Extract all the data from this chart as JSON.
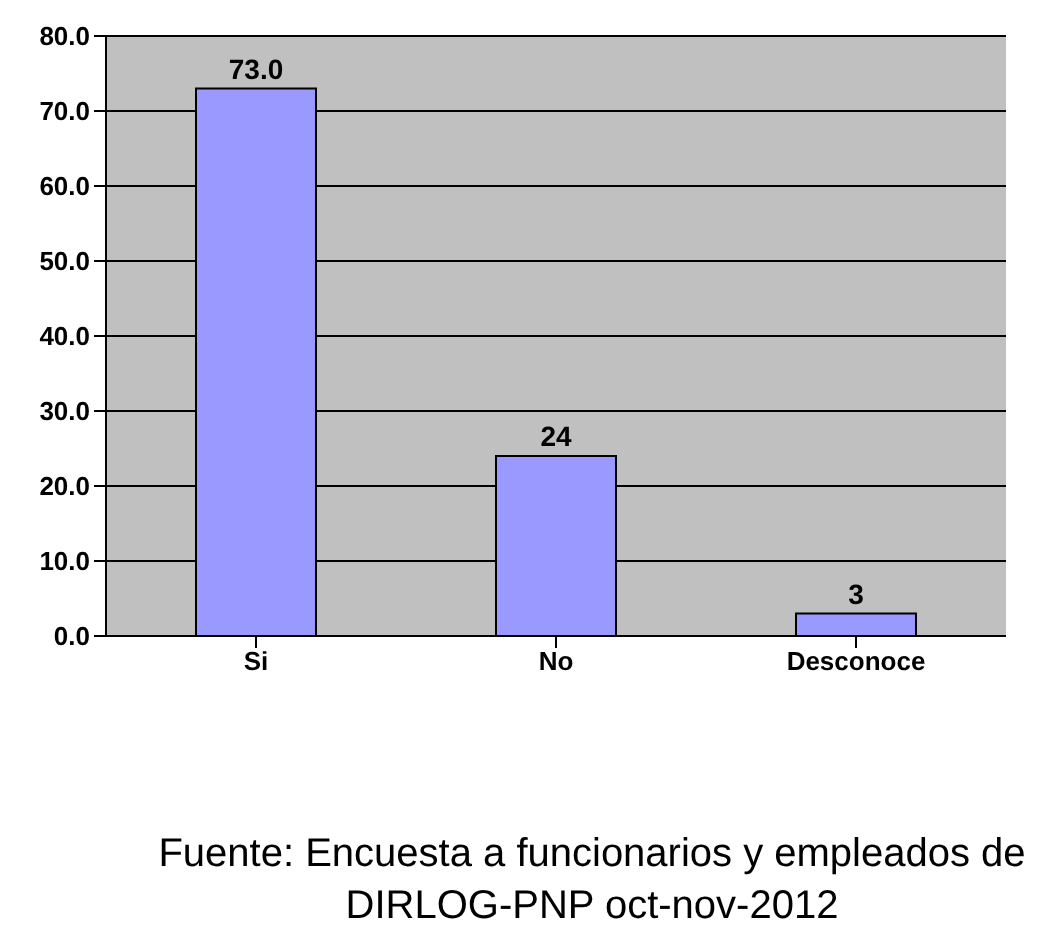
{
  "chart_data": {
    "type": "bar",
    "categories": [
      "Si",
      "No",
      "Desconoce"
    ],
    "values": [
      73,
      24,
      3
    ],
    "value_labels": [
      "73.0",
      "24",
      "3"
    ],
    "color": "#9999ff",
    "ylim": [
      0,
      80
    ],
    "yticks": [
      {
        "value": 0,
        "label": "0.0"
      },
      {
        "value": 10,
        "label": "10.0"
      },
      {
        "value": 20,
        "label": "20.0"
      },
      {
        "value": 30,
        "label": "30.0"
      },
      {
        "value": 40,
        "label": "40.0"
      },
      {
        "value": 50,
        "label": "50.0"
      },
      {
        "value": 60,
        "label": "60.0"
      },
      {
        "value": 70,
        "label": "70.0"
      },
      {
        "value": 80,
        "label": "80.0"
      }
    ],
    "grid": "y",
    "annotations": [
      "Fuente: Encuesta a funcionarios y empleados de DIRLOG-PNP oct-nov-2012"
    ]
  }
}
